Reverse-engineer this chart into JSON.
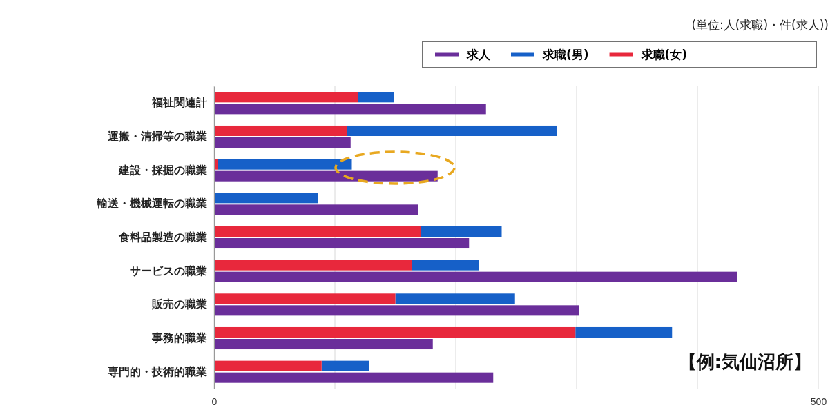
{
  "chart_data": {
    "type": "bar",
    "orientation": "horizontal",
    "subtitle": "(単位:人(求職)・件(求人))",
    "categories": [
      "福祉関連計",
      "運搬・清掃等の職業",
      "建設・採掘の職業",
      "輸送・機械運転の職業",
      "食料品製造の職業",
      "サービスの職業",
      "販売の職業",
      "事務的職業",
      "専門的・技術的職業"
    ],
    "series": [
      {
        "name": "求人",
        "color": "#6a2e9a",
        "values": [
          225,
          113,
          185,
          169,
          211,
          433,
          302,
          181,
          231
        ]
      },
      {
        "name": "求職(男)",
        "color": "#1660c8",
        "values": [
          30,
          174,
          111,
          86,
          67,
          55,
          99,
          80,
          39
        ],
        "base": [
          119,
          110,
          3,
          0,
          171,
          164,
          150,
          299,
          89
        ]
      },
      {
        "name": "求職(女)",
        "color": "#e8283c",
        "values": [
          119,
          110,
          3,
          0,
          171,
          164,
          150,
          299,
          89
        ]
      }
    ],
    "xlim": [
      0,
      500
    ],
    "xticks": [
      0,
      {
        "value": 100,
        "label": null
      },
      {
        "value": 200,
        "label": null
      },
      {
        "value": 300,
        "label": null
      },
      {
        "value": 400,
        "label": null
      },
      500
    ],
    "grid": "x",
    "legend": "top right",
    "annotations": [
      "【例:気仙沼所】"
    ]
  }
}
